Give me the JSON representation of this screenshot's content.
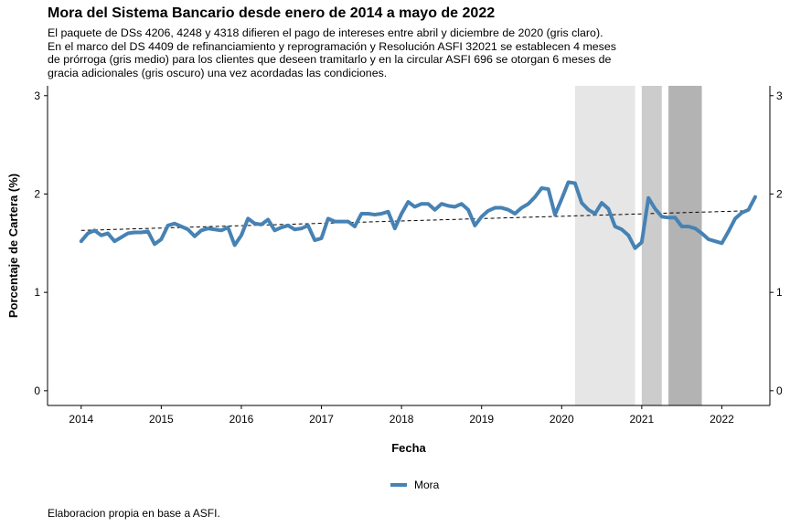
{
  "title": "Mora del Sistema Bancario desde enero de 2014 a mayo de 2022",
  "subtitle_lines": [
    "El paquete de DSs 4206, 4248 y 4318 difieren el pago de intereses entre abril y diciembre de 2020 (gris claro).",
    "En el marco del DS 4409 de refinanciamiento y reprogramación y Resolución ASFI 32021 se establecen 4 meses",
    "de prórroga (gris medio) para los clientes que deseen tramitarlo y en la circular ASFI 696 se otorgan 6 meses de",
    "gracia adicionales (gris oscuro) una vez acordadas las condiciones."
  ],
  "caption": "Elaboracion propia en base a ASFI.",
  "chart_data": {
    "type": "line",
    "xlabel": "Fecha",
    "ylabel": "Porcentaje de Cartera (%)",
    "xlim": [
      2013.58,
      2022.6
    ],
    "ylim": [
      -0.15,
      3.1
    ],
    "x_ticks": [
      2014,
      2015,
      2016,
      2017,
      2018,
      2019,
      2020,
      2021,
      2022
    ],
    "y_ticks": [
      0,
      1,
      2,
      3
    ],
    "secondary_y_axis": true,
    "grid": false,
    "legend_position": "bottom",
    "shaded_regions": [
      {
        "start": "2020-03",
        "end": "2020-12",
        "color": "#e6e6e6"
      },
      {
        "start": "2021-01",
        "end": "2021-04",
        "color": "#cccccc"
      },
      {
        "start": "2021-05",
        "end": "2021-10",
        "color": "#b3b3b3"
      }
    ],
    "series": [
      {
        "name": "Mora",
        "color": "#4682b4",
        "start": "2014-01",
        "values": [
          1.52,
          1.6,
          1.63,
          1.58,
          1.6,
          1.52,
          1.56,
          1.6,
          1.61,
          1.61,
          1.62,
          1.49,
          1.54,
          1.68,
          1.7,
          1.67,
          1.64,
          1.57,
          1.63,
          1.65,
          1.64,
          1.63,
          1.66,
          1.48,
          1.58,
          1.75,
          1.7,
          1.69,
          1.74,
          1.63,
          1.66,
          1.68,
          1.64,
          1.65,
          1.68,
          1.53,
          1.55,
          1.75,
          1.72,
          1.72,
          1.72,
          1.67,
          1.8,
          1.8,
          1.79,
          1.8,
          1.82,
          1.65,
          1.8,
          1.92,
          1.87,
          1.9,
          1.9,
          1.84,
          1.9,
          1.88,
          1.87,
          1.9,
          1.84,
          1.68,
          1.77,
          1.83,
          1.86,
          1.86,
          1.84,
          1.8,
          1.86,
          1.9,
          1.97,
          2.06,
          2.05,
          1.79,
          1.95,
          2.12,
          2.11,
          1.91,
          1.84,
          1.8,
          1.91,
          1.85,
          1.67,
          1.64,
          1.58,
          1.45,
          1.51,
          1.96,
          1.85,
          1.77,
          1.76,
          1.76,
          1.67,
          1.67,
          1.65,
          1.6,
          1.54,
          1.52,
          1.5,
          1.62,
          1.75,
          1.81,
          1.84,
          1.97
        ]
      }
    ],
    "trend_line": {
      "style": "dashed",
      "color": "#000000",
      "from": [
        2014.0,
        1.63
      ],
      "to": [
        2022.33,
        1.83
      ]
    }
  }
}
